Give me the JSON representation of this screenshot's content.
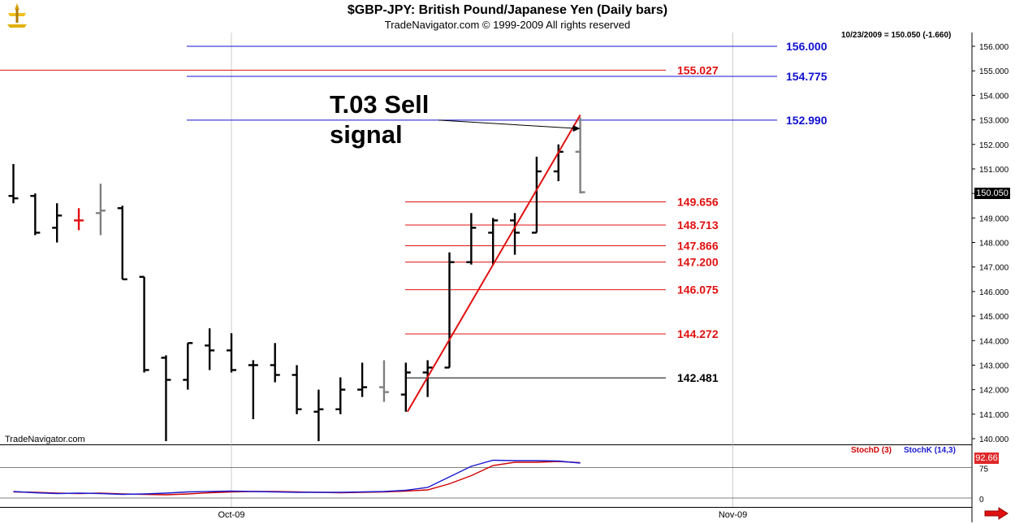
{
  "header": {
    "title": "$GBP-JPY:  British Pound/Japanese Yen  (Daily bars)",
    "subtitle": "TradeNavigator.com © 1999-2009 All rights reserved"
  },
  "quote_line": "10/23/2009 = 150.050 (-1.660)",
  "last_price_label": "150.050",
  "credit": "TradeNavigator.com",
  "annotation": {
    "line1": "T.03 Sell",
    "line2": "signal"
  },
  "stoch": {
    "d_label": "StochD (3)",
    "k_label": "StochK (14,3)",
    "value_label": "92.66",
    "ticks": [
      "75",
      "0"
    ]
  },
  "colors": {
    "up_bar": "#000000",
    "down_bar": "#000000",
    "neutral_bar": "#808080",
    "red_bar": "#e01010",
    "blue_level": "#1010d0",
    "red_level": "#e01010",
    "stoch_d": "#d00000",
    "stoch_k": "#1a1ad0"
  },
  "chart_data": {
    "type": "ohlc",
    "title": "$GBP-JPY:  British Pound/Japanese Yen  (Daily bars)",
    "ylim": [
      139.9,
      156.6
    ],
    "y_ticks": [
      "156.000",
      "155.000",
      "154.000",
      "153.000",
      "152.000",
      "151.000",
      "150.000",
      "149.000",
      "148.000",
      "147.000",
      "146.000",
      "145.000",
      "144.000",
      "143.000",
      "142.000",
      "141.000",
      "140.000"
    ],
    "x_ticks": [
      {
        "label": "Oct-09",
        "index": 10
      },
      {
        "label": "Nov-09",
        "index": 33
      }
    ],
    "bars": [
      {
        "o": 149.9,
        "h": 151.2,
        "l": 149.6,
        "c": 149.8,
        "color": "black"
      },
      {
        "o": 149.9,
        "h": 150.0,
        "l": 148.3,
        "c": 148.4,
        "color": "black"
      },
      {
        "o": 148.6,
        "h": 149.6,
        "l": 148.0,
        "c": 149.1,
        "color": "black"
      },
      {
        "o": 148.9,
        "h": 149.4,
        "l": 148.5,
        "c": 148.9,
        "color": "red"
      },
      {
        "o": 149.2,
        "h": 150.4,
        "l": 148.3,
        "c": 149.3,
        "color": "grey"
      },
      {
        "o": 149.4,
        "h": 149.5,
        "l": 146.5,
        "c": 146.5,
        "color": "black"
      },
      {
        "o": 146.6,
        "h": 146.6,
        "l": 142.7,
        "c": 142.8,
        "color": "black"
      },
      {
        "o": 143.3,
        "h": 143.4,
        "l": 139.9,
        "c": 142.4,
        "color": "black"
      },
      {
        "o": 142.4,
        "h": 143.9,
        "l": 142.0,
        "c": 143.9,
        "color": "black"
      },
      {
        "o": 143.8,
        "h": 144.5,
        "l": 142.8,
        "c": 143.6,
        "color": "black"
      },
      {
        "o": 143.6,
        "h": 144.3,
        "l": 142.7,
        "c": 142.8,
        "color": "black"
      },
      {
        "o": 143.0,
        "h": 143.2,
        "l": 140.8,
        "c": 143.0,
        "color": "black"
      },
      {
        "o": 143.0,
        "h": 143.9,
        "l": 142.3,
        "c": 142.6,
        "color": "black"
      },
      {
        "o": 142.6,
        "h": 143.0,
        "l": 141.0,
        "c": 141.2,
        "color": "black"
      },
      {
        "o": 141.1,
        "h": 142.0,
        "l": 139.9,
        "c": 141.2,
        "color": "black"
      },
      {
        "o": 141.2,
        "h": 142.5,
        "l": 141.0,
        "c": 142.0,
        "color": "black"
      },
      {
        "o": 142.0,
        "h": 143.1,
        "l": 141.7,
        "c": 142.1,
        "color": "black"
      },
      {
        "o": 142.1,
        "h": 143.2,
        "l": 141.5,
        "c": 141.9,
        "color": "grey"
      },
      {
        "o": 141.8,
        "h": 143.1,
        "l": 141.1,
        "c": 142.7,
        "color": "black"
      },
      {
        "o": 142.7,
        "h": 143.2,
        "l": 141.7,
        "c": 142.9,
        "color": "black"
      },
      {
        "o": 142.9,
        "h": 147.6,
        "l": 142.9,
        "c": 147.2,
        "color": "black"
      },
      {
        "o": 147.2,
        "h": 149.2,
        "l": 147.1,
        "c": 148.6,
        "color": "black"
      },
      {
        "o": 148.4,
        "h": 149.0,
        "l": 147.1,
        "c": 148.9,
        "color": "black"
      },
      {
        "o": 148.9,
        "h": 149.2,
        "l": 147.5,
        "c": 148.4,
        "color": "black"
      },
      {
        "o": 148.4,
        "h": 151.5,
        "l": 148.4,
        "c": 150.9,
        "color": "black"
      },
      {
        "o": 150.9,
        "h": 152.0,
        "l": 150.5,
        "c": 151.7,
        "color": "black"
      },
      {
        "o": 151.7,
        "h": 153.1,
        "l": 150.0,
        "c": 150.05,
        "color": "grey"
      }
    ],
    "levels": [
      {
        "value": 156.0,
        "label": "156.000",
        "color": "blue"
      },
      {
        "value": 155.027,
        "label": "155.027",
        "color": "red"
      },
      {
        "value": 154.775,
        "label": "154.775",
        "color": "blue"
      },
      {
        "value": 152.99,
        "label": "152.990",
        "color": "blue"
      },
      {
        "value": 149.656,
        "label": "149.656",
        "color": "red"
      },
      {
        "value": 148.713,
        "label": "148.713",
        "color": "red"
      },
      {
        "value": 147.866,
        "label": "147.866",
        "color": "red"
      },
      {
        "value": 147.2,
        "label": "147.200",
        "color": "red"
      },
      {
        "value": 146.075,
        "label": "146.075",
        "color": "red"
      },
      {
        "value": 144.272,
        "label": "144.272",
        "color": "red"
      },
      {
        "value": 142.481,
        "label": "142.481",
        "color": "black"
      }
    ],
    "trendline": {
      "from": {
        "index": 18,
        "value": 141.1
      },
      "to": {
        "index": 26,
        "value": 153.2
      }
    },
    "signal_arrow": {
      "from": {
        "index": 18.2,
        "value": 152.99
      },
      "to": {
        "index": 26,
        "value": 152.65
      }
    },
    "stochastic": {
      "ylim": [
        0,
        100
      ],
      "d": [
        15,
        14,
        12,
        11,
        12,
        10,
        9,
        8,
        10,
        13,
        15,
        16,
        16,
        15,
        14,
        13,
        14,
        15,
        17,
        20,
        35,
        55,
        80,
        88,
        88,
        90,
        87
      ],
      "k": [
        16,
        13,
        11,
        12,
        11,
        9,
        10,
        12,
        15,
        16,
        17,
        16,
        15,
        14,
        14,
        14,
        15,
        16,
        19,
        26,
        52,
        78,
        93,
        92,
        92,
        91,
        86
      ]
    }
  }
}
